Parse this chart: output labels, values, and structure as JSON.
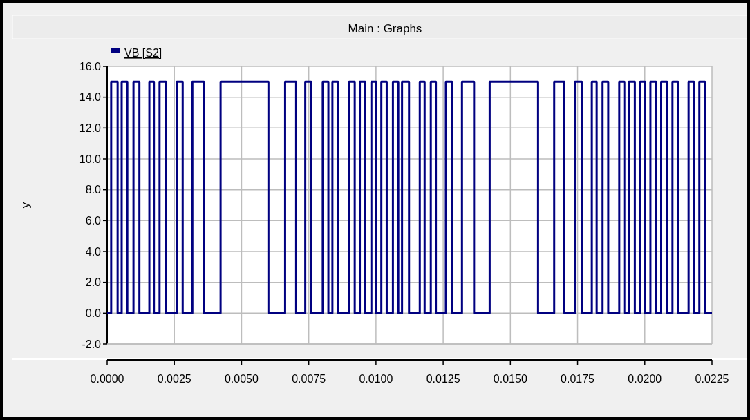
{
  "chart_data": {
    "type": "step",
    "title": "Main : Graphs",
    "ylabel": "y",
    "xlim": [
      0,
      0.0225
    ],
    "xticks": [
      {
        "value": 0,
        "label": "0.0000"
      },
      {
        "value": 0.0025,
        "label": "0.0025"
      },
      {
        "value": 0.005,
        "label": "0.0050"
      },
      {
        "value": 0.0075,
        "label": "0.0075"
      },
      {
        "value": 0.01,
        "label": "0.0100"
      },
      {
        "value": 0.0125,
        "label": "0.0125"
      },
      {
        "value": 0.015,
        "label": "0.0150"
      },
      {
        "value": 0.0175,
        "label": "0.0175"
      },
      {
        "value": 0.02,
        "label": "0.0200"
      },
      {
        "value": 0.0225,
        "label": "0.0225"
      }
    ],
    "ylim": [
      -2,
      16
    ],
    "yticks": [
      {
        "value": -2,
        "label": "-2.0"
      },
      {
        "value": 0,
        "label": "0.0"
      },
      {
        "value": 2,
        "label": "2.0"
      },
      {
        "value": 4,
        "label": "4.0"
      },
      {
        "value": 6,
        "label": "6.0"
      },
      {
        "value": 8,
        "label": "8.0"
      },
      {
        "value": 10,
        "label": "10.0"
      },
      {
        "value": 12,
        "label": "12.0"
      },
      {
        "value": 14,
        "label": "14.0"
      },
      {
        "value": 16,
        "label": "16.0"
      }
    ],
    "grid": true,
    "legend": "top left",
    "line_style": "solid",
    "marker": "none",
    "series": [
      {
        "name": "VB [S2]",
        "color": "#000080",
        "x": [
          0,
          0.00015,
          0.00039,
          0.00054,
          0.00075,
          0.00098,
          0.0012,
          0.00157,
          0.00174,
          0.00195,
          0.00219,
          0.00259,
          0.00281,
          0.00317,
          0.0036,
          0.00422,
          0.006,
          0.00662,
          0.00703,
          0.00737,
          0.00759,
          0.00802,
          0.00823,
          0.00838,
          0.00859,
          0.009,
          0.00921,
          0.0094,
          0.0096,
          0.00983,
          0.01001,
          0.0102,
          0.0104,
          0.01063,
          0.01083,
          0.01097,
          0.01123,
          0.01163,
          0.01181,
          0.01204,
          0.01223,
          0.0126,
          0.01283,
          0.0132,
          0.01365,
          0.01423,
          0.01603,
          0.01663,
          0.01701,
          0.0174,
          0.01766,
          0.01803,
          0.01821,
          0.01843,
          0.01864,
          0.01905,
          0.01924,
          0.01941,
          0.01963,
          0.01983,
          0.02001,
          0.02021,
          0.02042,
          0.02061,
          0.02083,
          0.02103,
          0.02124,
          0.02163,
          0.02183,
          0.02203,
          0.02224,
          0.0225
        ],
        "values": [
          0,
          15,
          0,
          15,
          0,
          15,
          0,
          15,
          0,
          15,
          0,
          15,
          0,
          15,
          0,
          15,
          0,
          15,
          0,
          15,
          0,
          15,
          0,
          15,
          0,
          15,
          0,
          15,
          0,
          15,
          0,
          15,
          0,
          15,
          0,
          15,
          0,
          15,
          0,
          15,
          0,
          15,
          0,
          15,
          0,
          15,
          0,
          15,
          0,
          15,
          0,
          15,
          0,
          15,
          0,
          15,
          0,
          15,
          0,
          15,
          0,
          15,
          0,
          15,
          0,
          15,
          0,
          15,
          0,
          15,
          0,
          0
        ]
      }
    ]
  }
}
